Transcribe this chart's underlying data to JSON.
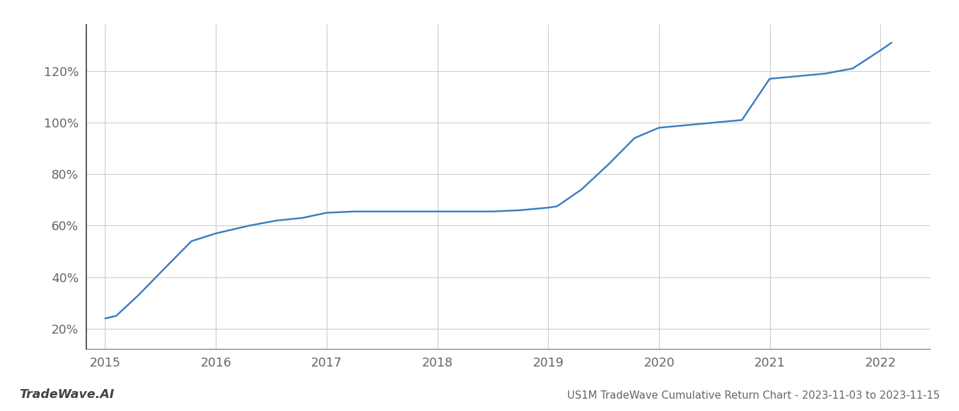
{
  "title": "US1M TradeWave Cumulative Return Chart - 2023-11-03 to 2023-11-15",
  "footnote_left": "TradeWave.AI",
  "line_color": "#3a7ebf",
  "background_color": "#ffffff",
  "grid_color": "#cccccc",
  "x_values": [
    2015.0,
    2015.1,
    2015.3,
    2015.55,
    2015.78,
    2016.0,
    2016.1,
    2016.3,
    2016.55,
    2016.78,
    2017.0,
    2017.25,
    2017.5,
    2017.75,
    2018.0,
    2018.25,
    2018.5,
    2018.75,
    2019.0,
    2019.08,
    2019.3,
    2019.55,
    2019.78,
    2020.0,
    2020.25,
    2020.5,
    2020.75,
    2021.0,
    2021.25,
    2021.5,
    2021.75,
    2022.0,
    2022.1
  ],
  "y_values": [
    24,
    25,
    33,
    44,
    54,
    57,
    58,
    60,
    62,
    63,
    65,
    65.5,
    65.5,
    65.5,
    65.5,
    65.5,
    65.5,
    66,
    67,
    67.5,
    74,
    84,
    94,
    98,
    99,
    100,
    101,
    117,
    118,
    119,
    121,
    128,
    131
  ],
  "xlim": [
    2014.83,
    2022.45
  ],
  "ylim": [
    12,
    138
  ],
  "yticks": [
    20,
    40,
    60,
    80,
    100,
    120
  ],
  "xticks": [
    2015,
    2016,
    2017,
    2018,
    2019,
    2020,
    2021,
    2022
  ],
  "line_width": 1.8,
  "figsize": [
    14.0,
    6.0
  ],
  "dpi": 100
}
